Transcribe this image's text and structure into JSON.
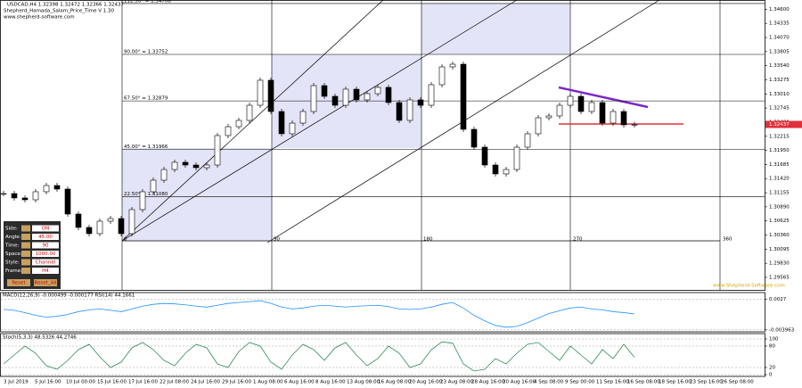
{
  "header": {
    "symbol_line": "USDCAD,H4  1.32398 1.32472 1.32366 1.32437",
    "indicator": "Shepherd_Hamada_Salam_Price_Time V 1.30",
    "site": "www.shepherd-software.com"
  },
  "panel": {
    "rows": [
      [
        "Side:",
        "ON"
      ],
      [
        "Angle:",
        "45.00"
      ],
      [
        "Time:",
        "90"
      ],
      [
        "Space:",
        "1000.00"
      ],
      [
        "Style:",
        "Channel"
      ],
      [
        "Frame:",
        "H4"
      ]
    ],
    "buttons": [
      "Reset",
      "Reset_All"
    ]
  },
  "chart_data": {
    "type": "candlestick",
    "close": [
      1.31139,
      1.31056,
      1.31022,
      1.31173,
      1.3129,
      1.31223,
      1.30754,
      1.30503,
      1.30386,
      1.3062,
      1.3067,
      1.30386,
      1.30838,
      1.31173,
      1.3139,
      1.31591,
      1.31726,
      1.31675,
      1.31625,
      1.31675,
      1.32228,
      1.32395,
      1.32513,
      1.32797,
      1.33267,
      1.3268,
      1.32262,
      1.32462,
      1.3268,
      1.33166,
      1.32965,
      1.32797,
      1.33099,
      1.32898,
      1.33015,
      1.33133,
      1.32848,
      1.32513,
      1.32898,
      1.32797,
      1.33183,
      1.33518,
      1.33568,
      1.32345,
      1.3201,
      1.31675,
      1.31508,
      1.31591,
      1.3201,
      1.32262,
      1.32563,
      1.32597,
      1.32797,
      1.32965,
      1.3268,
      1.32848,
      1.32462,
      1.3268,
      1.32429,
      1.32437
    ],
    "ylim": [
      1.2933,
      1.34774
    ],
    "yticks": [
      {
        "value": 1.346,
        "label": "1.34600"
      },
      {
        "value": 1.34335,
        "label": "1.34335"
      },
      {
        "value": 1.3407,
        "label": "1.34070"
      },
      {
        "value": 1.33805,
        "label": "1.33805"
      },
      {
        "value": 1.3354,
        "label": "1.33540"
      },
      {
        "value": 1.33275,
        "label": "1.33275"
      },
      {
        "value": 1.3301,
        "label": "1.33010"
      },
      {
        "value": 1.32745,
        "label": "1.32745"
      },
      {
        "value": 1.3248,
        "label": "1.32480"
      },
      {
        "value": 1.32215,
        "label": "1.32215"
      },
      {
        "value": 1.3195,
        "label": "1.31950"
      },
      {
        "value": 1.31685,
        "label": "1.31685"
      },
      {
        "value": 1.3142,
        "label": "1.31420"
      },
      {
        "value": 1.31155,
        "label": "1.31155"
      },
      {
        "value": 1.3089,
        "label": "1.30890"
      },
      {
        "value": 1.30625,
        "label": "1.30625"
      },
      {
        "value": 1.3036,
        "label": "1.30360"
      },
      {
        "value": 1.30095,
        "label": "1.30095"
      },
      {
        "value": 1.2983,
        "label": "1.29830"
      },
      {
        "value": 1.29565,
        "label": "1.29565"
      }
    ],
    "last_price": 1.32437,
    "fib_levels": [
      {
        "value": 1.34708,
        "label": "112.50° = 1.34708"
      },
      {
        "value": 1.33752,
        "label": "90.00° = 1.33752"
      },
      {
        "value": 1.32879,
        "label": "67.50° = 1.32879"
      },
      {
        "value": 1.31966,
        "label": "45.00° = 1.31966"
      },
      {
        "value": 1.3108,
        "label": "22.50° = 1.31080"
      }
    ],
    "cycle_labels": [
      "0",
      "90",
      "180",
      "270",
      "360"
    ],
    "time_labels": [
      "3 Jul 2019",
      "5 Jul 16:00",
      "10 Jul 00:00",
      "15 Jul 16:00",
      "17 Jul 16:00",
      "22 Jul 08:00",
      "24 Jul 16:00",
      "29 Jul 16:00",
      "1 Aug 08:00",
      "6 Aug 16:00",
      "8 Aug 16:00",
      "13 Aug 08:00",
      "16 Aug 08:00",
      "20 Aug 16:00",
      "23 Aug 08:00",
      "28 Aug 16:00",
      "30 Aug 16:00",
      "4 Sep 08:00",
      "9 Sep 00:00",
      "11 Sep 16:00",
      "16 Sep 08:00",
      "18 Sep 16:00",
      "23 Sep 16:00",
      "26 Sep 08:00"
    ],
    "watermark": "www.Shepherd-Software.com"
  },
  "macd_data": {
    "type": "line",
    "header": "MACD(12,26,9) -0.000499 -0.000177  RSI(14) 44.1661",
    "color": "#1e90ff",
    "values": [
      0.0005,
      0.0003,
      -0.0002,
      -0.0008,
      -0.0012,
      -0.001,
      -0.0006,
      0,
      0.0004,
      0.0006,
      0.0003,
      0,
      0.0006,
      0.0012,
      0.0016,
      0.0018,
      0.0017,
      0.0015,
      0.0012,
      0.001,
      0.0014,
      0.0018,
      0.002,
      0.0022,
      0.0024,
      0.0018,
      0.001,
      0.0006,
      0.0008,
      0.0012,
      0.0014,
      0.0012,
      0.001,
      0.0012,
      0.0013,
      0.0014,
      0.0011,
      0.0006,
      0.0005,
      0.0006,
      0.001,
      0.0016,
      0.002,
      0.0008,
      -0.0008,
      -0.002,
      -0.003,
      -0.0034,
      -0.0032,
      -0.0024,
      -0.0014,
      -0.0004,
      0.0002,
      0.0008,
      0.001,
      0.0006,
      0.0004,
      0,
      -0.0002,
      -0.0005
    ],
    "ylim": [
      -0.004,
      0.003
    ],
    "yticks": [
      0.0027,
      -0.003963
    ]
  },
  "stoch_data": {
    "type": "line",
    "header": "Stoch(5,3,3) 48.5326 44.2746",
    "color": "#2e8b57",
    "values": [
      30,
      55,
      80,
      60,
      25,
      15,
      40,
      70,
      85,
      50,
      20,
      35,
      75,
      90,
      70,
      40,
      25,
      60,
      85,
      75,
      30,
      20,
      65,
      90,
      80,
      35,
      15,
      55,
      85,
      70,
      40,
      75,
      90,
      55,
      25,
      45,
      80,
      60,
      20,
      30,
      70,
      92,
      88,
      30,
      10,
      15,
      45,
      30,
      60,
      85,
      90,
      65,
      40,
      80,
      55,
      30,
      70,
      45,
      85,
      48.5
    ],
    "ylim": [
      0,
      100
    ],
    "yticks": [
      100,
      80,
      20,
      0
    ]
  }
}
